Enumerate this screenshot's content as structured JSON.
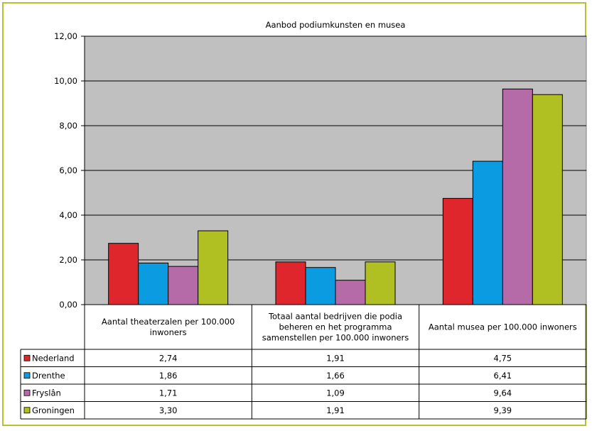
{
  "chart_data": {
    "type": "bar",
    "title": "Aanbod podiumkunsten en musea",
    "categories": [
      [
        "Aantal theaterzalen per 100.000",
        "inwoners"
      ],
      [
        "Totaal aantal bedrijven die podia",
        "beheren en het programma",
        "samenstellen per 100.000 inwoners"
      ],
      [
        "Aantal musea per 100.000 inwoners"
      ]
    ],
    "series": [
      {
        "name": "Nederland",
        "color": "#e0262d",
        "values": [
          2.74,
          1.91,
          4.75
        ],
        "labels": [
          "2,74",
          "1,91",
          "4,75"
        ]
      },
      {
        "name": "Drenthe",
        "color": "#0a9be0",
        "values": [
          1.86,
          1.66,
          6.41
        ],
        "labels": [
          "1,86",
          "1,66",
          "6,41"
        ]
      },
      {
        "name": "Fryslân",
        "color": "#b56ba7",
        "values": [
          1.71,
          1.09,
          9.64
        ],
        "labels": [
          "1,71",
          "1,09",
          "9,64"
        ]
      },
      {
        "name": "Groningen",
        "color": "#b0bf22",
        "values": [
          3.3,
          1.91,
          9.39
        ],
        "labels": [
          "3,30",
          "1,91",
          "9,39"
        ]
      }
    ],
    "ylim": [
      0,
      12
    ],
    "yticks": [
      0,
      2,
      4,
      6,
      8,
      10,
      12
    ],
    "ytick_labels": [
      "0,00",
      "2,00",
      "4,00",
      "6,00",
      "8,00",
      "10,00",
      "12,00"
    ],
    "plot_background": "#c0c0c0",
    "gridlines": true,
    "legend": "data-table"
  }
}
